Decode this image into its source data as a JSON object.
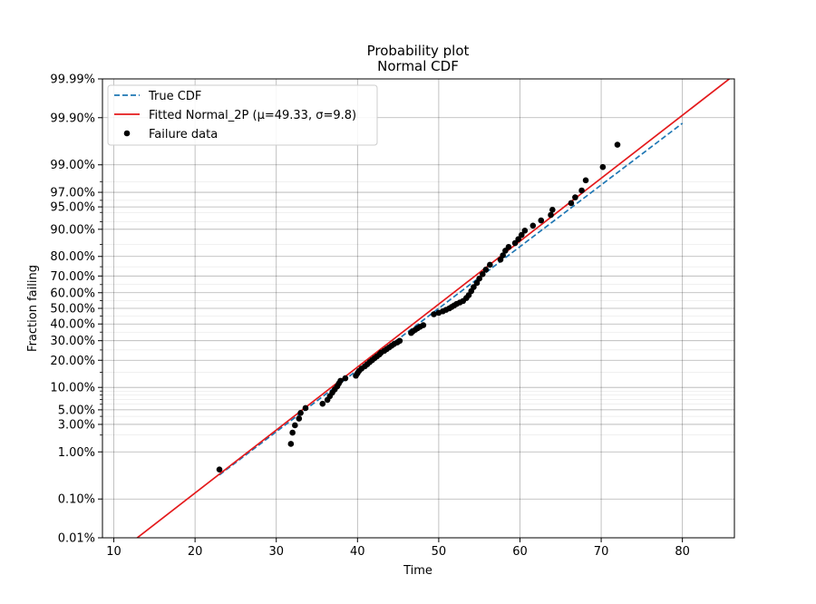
{
  "chart_data": {
    "type": "scatter",
    "title": "Probability plot",
    "subtitle": "Normal CDF",
    "xlabel": "Time",
    "ylabel": "Fraction failing",
    "xlim": [
      8.6,
      86.4
    ],
    "ylim": [
      0.0001,
      0.9999
    ],
    "y_scale": "normal-probability",
    "grid": true,
    "legend_position": "top-left",
    "x_ticks": [
      10,
      20,
      30,
      40,
      50,
      60,
      70,
      80
    ],
    "y_ticks": [
      {
        "p": 0.0001,
        "label": "0.01%"
      },
      {
        "p": 0.001,
        "label": "0.10%"
      },
      {
        "p": 0.01,
        "label": "1.00%"
      },
      {
        "p": 0.03,
        "label": "3.00%"
      },
      {
        "p": 0.05,
        "label": "5.00%"
      },
      {
        "p": 0.1,
        "label": "10.00%"
      },
      {
        "p": 0.2,
        "label": "20.00%"
      },
      {
        "p": 0.3,
        "label": "30.00%"
      },
      {
        "p": 0.4,
        "label": "40.00%"
      },
      {
        "p": 0.5,
        "label": "50.00%"
      },
      {
        "p": 0.6,
        "label": "60.00%"
      },
      {
        "p": 0.7,
        "label": "70.00%"
      },
      {
        "p": 0.8,
        "label": "80.00%"
      },
      {
        "p": 0.9,
        "label": "90.00%"
      },
      {
        "p": 0.95,
        "label": "95.00%"
      },
      {
        "p": 0.97,
        "label": "97.00%"
      },
      {
        "p": 0.99,
        "label": "99.00%"
      },
      {
        "p": 0.999,
        "label": "99.90%"
      },
      {
        "p": 0.9999,
        "label": "99.99%"
      }
    ],
    "minor_grid_p": [
      0.02,
      0.04,
      0.06,
      0.07,
      0.08,
      0.09,
      0.15,
      0.25,
      0.35,
      0.45,
      0.55,
      0.65,
      0.75,
      0.85,
      0.92,
      0.94,
      0.96,
      0.98
    ],
    "series": [
      {
        "name": "True CDF",
        "kind": "line",
        "style": "dashed",
        "color": "#1f77b4",
        "mu": 50,
        "sigma": 10,
        "x_range": [
          23,
          80
        ]
      },
      {
        "name": "Fitted Normal_2P (μ=49.33, σ=9.8)",
        "kind": "line",
        "style": "solid",
        "color": "#e41a1c",
        "mu": 49.33,
        "sigma": 9.8,
        "x_range": [
          8.6,
          86.4
        ]
      },
      {
        "name": "Failure data",
        "kind": "scatter",
        "color": "#000000",
        "x": [
          23.0,
          31.8,
          32.0,
          32.3,
          32.8,
          33.0,
          33.6,
          35.7,
          36.3,
          36.6,
          36.9,
          37.2,
          37.5,
          37.7,
          37.9,
          38.5,
          39.8,
          40.0,
          40.2,
          40.5,
          40.9,
          41.2,
          41.5,
          41.8,
          42.1,
          42.4,
          42.7,
          42.9,
          43.3,
          43.6,
          43.9,
          44.2,
          44.5,
          44.9,
          45.2,
          46.6,
          46.8,
          47.1,
          47.4,
          47.7,
          48.1,
          49.4,
          50.0,
          50.5,
          50.9,
          51.3,
          51.6,
          51.9,
          52.2,
          52.6,
          53.0,
          53.4,
          53.7,
          54.0,
          54.3,
          54.7,
          55.0,
          55.4,
          55.8,
          56.3,
          57.6,
          57.9,
          58.2,
          58.6,
          59.4,
          59.8,
          60.2,
          60.6,
          61.6,
          62.6,
          63.8,
          64.0,
          66.3,
          66.8,
          67.6,
          68.1,
          70.2,
          72.0
        ],
        "y": [
          0.0045,
          0.014,
          0.022,
          0.029,
          0.037,
          0.045,
          0.053,
          0.061,
          0.069,
          0.0775,
          0.086,
          0.0945,
          0.103,
          0.1115,
          0.12,
          0.1285,
          0.1375,
          0.1465,
          0.1555,
          0.1645,
          0.1735,
          0.1825,
          0.1915,
          0.2005,
          0.2095,
          0.2185,
          0.2275,
          0.2365,
          0.2455,
          0.2545,
          0.2635,
          0.2725,
          0.2815,
          0.2905,
          0.2995,
          0.345,
          0.3545,
          0.364,
          0.3735,
          0.383,
          0.3925,
          0.462,
          0.4715,
          0.481,
          0.4905,
          0.5,
          0.5095,
          0.519,
          0.5285,
          0.538,
          0.5475,
          0.5665,
          0.585,
          0.61,
          0.635,
          0.66,
          0.685,
          0.71,
          0.735,
          0.76,
          0.785,
          0.805,
          0.825,
          0.84,
          0.855,
          0.869,
          0.883,
          0.896,
          0.91,
          0.923,
          0.935,
          0.945,
          0.956,
          0.964,
          0.972,
          0.981,
          0.989,
          0.996
        ]
      }
    ]
  }
}
